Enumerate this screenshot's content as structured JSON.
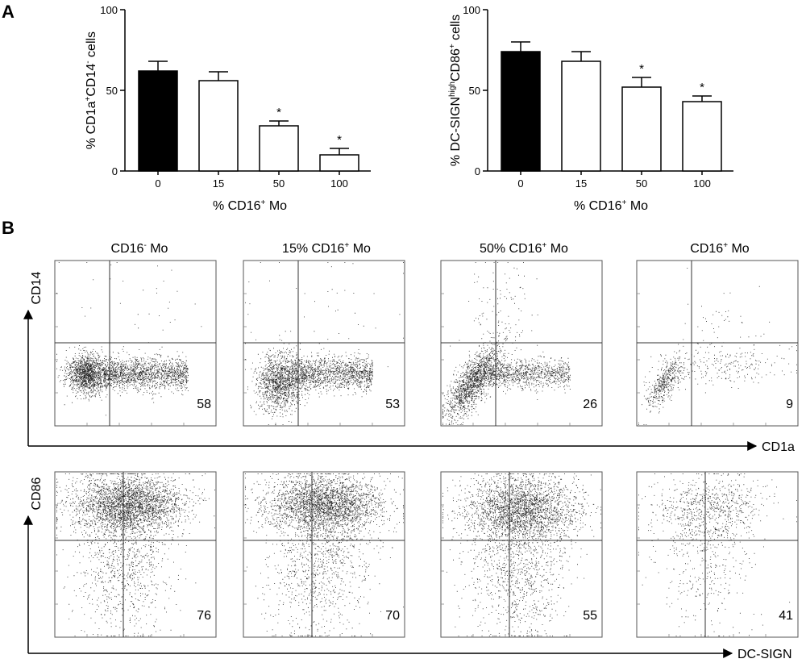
{
  "panel_labels": {
    "a": "A",
    "b": "B"
  },
  "chart_data": [
    {
      "type": "bar",
      "ylabel": {
        "main": "% CD1a",
        "sup1": "+",
        "mid": "CD14",
        "sup2": "-",
        "end": " cells"
      },
      "xlabel": {
        "main": "% CD16",
        "sup": "+",
        "end": " Mo"
      },
      "categories": [
        "0",
        "15",
        "50",
        "100"
      ],
      "values": [
        62,
        56,
        28,
        10
      ],
      "errors": [
        6,
        5.5,
        3,
        4
      ],
      "bar_fill": [
        "#000000",
        "#ffffff",
        "#ffffff",
        "#ffffff"
      ],
      "significance": [
        "",
        "",
        "*",
        "*"
      ],
      "ylim": [
        0,
        100
      ],
      "yticks": [
        "0",
        "50",
        "100"
      ]
    },
    {
      "type": "bar",
      "ylabel": {
        "main": "% DC-SIGN",
        "sup1": "high",
        "mid": "CD86",
        "sup2": "+",
        "end": " cells"
      },
      "xlabel": {
        "main": "% CD16",
        "sup": "+",
        "end": " Mo"
      },
      "categories": [
        "0",
        "15",
        "50",
        "100"
      ],
      "values": [
        74,
        68,
        52,
        43
      ],
      "errors": [
        6,
        6,
        6,
        3.5
      ],
      "bar_fill": [
        "#000000",
        "#ffffff",
        "#ffffff",
        "#ffffff"
      ],
      "significance": [
        "",
        "",
        "*",
        "*"
      ],
      "ylim": [
        0,
        100
      ],
      "yticks": [
        "0",
        "50",
        "100"
      ]
    }
  ],
  "flow": {
    "columns": [
      {
        "name": "CD16",
        "sup": "-",
        "end": " Mo"
      },
      {
        "name": "15% CD16",
        "sup": "+",
        "end": " Mo"
      },
      {
        "name": "50% CD16",
        "sup": "+",
        "end": " Mo"
      },
      {
        "name": "CD16",
        "sup": "+",
        "end": " Mo"
      }
    ],
    "row1": {
      "y_axis": "CD14",
      "x_axis": "CD1a",
      "values": [
        "58",
        "53",
        "26",
        "9"
      ]
    },
    "row2": {
      "y_axis": "CD86",
      "x_axis": "DC-SIGN",
      "values": [
        "76",
        "70",
        "55",
        "41"
      ]
    }
  }
}
